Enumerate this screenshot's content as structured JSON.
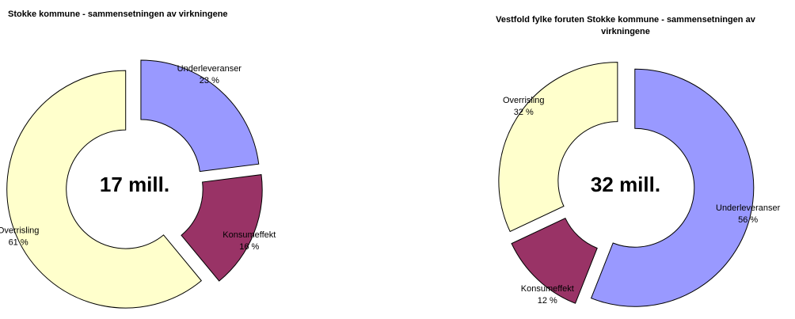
{
  "chart_data": [
    {
      "type": "donut",
      "title": "Stokke kommune - sammensetningen av virkningene",
      "center_label": "17 mill.",
      "categories": [
        "Underleveranser",
        "Konsumeffekt",
        "Overrisling"
      ],
      "values": [
        23,
        16,
        61
      ],
      "value_labels": [
        "23 %",
        "16 %",
        "61 %"
      ],
      "colors": [
        "#9999ff",
        "#993366",
        "#ffffcc"
      ]
    },
    {
      "type": "donut",
      "title": "Vestfold fylke foruten Stokke kommune - sammensetningen av virkningene",
      "center_label": "32 mill.",
      "categories": [
        "Underleveranser",
        "Konsumeffekt",
        "Overrisling"
      ],
      "values": [
        56,
        12,
        32
      ],
      "value_labels": [
        "56 %",
        "12 %",
        "32 %"
      ],
      "colors": [
        "#9999ff",
        "#993366",
        "#ffffcc"
      ]
    }
  ]
}
